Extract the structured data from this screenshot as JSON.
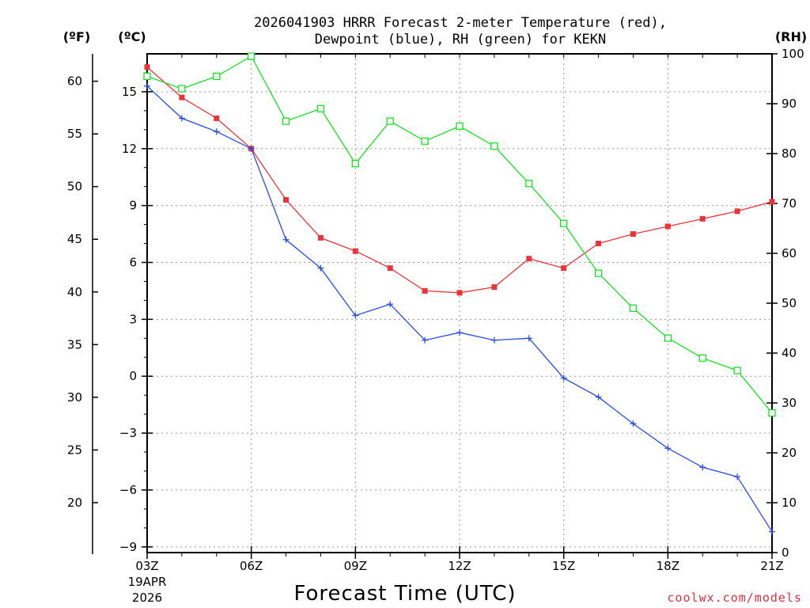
{
  "chart_data": {
    "type": "line",
    "title_line1": "2026041903 HRRR Forecast 2-meter Temperature (red),",
    "title_line2": "Dewpoint (blue), RH (green) for KEKN",
    "xlabel": "Forecast Time (UTC)",
    "x_hours": [
      3,
      4,
      5,
      6,
      7,
      8,
      9,
      10,
      11,
      12,
      13,
      14,
      15,
      16,
      17,
      18,
      19,
      20,
      21
    ],
    "x_ticks": [
      {
        "hour": 3,
        "label": "03Z"
      },
      {
        "hour": 6,
        "label": "06Z"
      },
      {
        "hour": 9,
        "label": "09Z"
      },
      {
        "hour": 12,
        "label": "12Z"
      },
      {
        "hour": 15,
        "label": "15Z"
      },
      {
        "hour": 18,
        "label": "18Z"
      },
      {
        "hour": 21,
        "label": "21Z"
      }
    ],
    "date_label_line1": "19APR",
    "date_label_line2": "2026",
    "y_celsius": {
      "unit_label": "(ºC)",
      "range": [
        -9.3,
        17.0
      ],
      "ticks": [
        15,
        12,
        9,
        6,
        3,
        0,
        -3,
        -6,
        -9
      ],
      "tick_labels": [
        "15",
        "12",
        "9",
        "6",
        "3",
        "0",
        "−3",
        "−6",
        "−9"
      ]
    },
    "y_fahrenheit": {
      "unit_label": "(ºF)",
      "ticks": [
        60,
        55,
        50,
        45,
        40,
        35,
        30,
        25,
        20
      ],
      "tick_labels": [
        "60",
        "55",
        "50",
        "45",
        "40",
        "35",
        "30",
        "25",
        "20"
      ]
    },
    "y_rh": {
      "unit_label": "(RH)",
      "range": [
        0,
        100
      ],
      "ticks": [
        100,
        90,
        80,
        70,
        60,
        50,
        40,
        30,
        20,
        10,
        0
      ],
      "tick_labels": [
        "100",
        "90",
        "80",
        "70",
        "60",
        "50",
        "40",
        "30",
        "20",
        "10",
        "0"
      ]
    },
    "series": [
      {
        "name": "Temperature",
        "axis": "celsius",
        "color": "#e8353a",
        "marker": "filled-square",
        "values": [
          16.3,
          14.7,
          13.6,
          12.0,
          9.3,
          7.3,
          6.6,
          5.7,
          4.5,
          4.4,
          4.7,
          6.2,
          5.7,
          7.0,
          7.5,
          7.9,
          8.3,
          8.7,
          9.2
        ]
      },
      {
        "name": "Dewpoint",
        "axis": "celsius",
        "color": "#2a4be6",
        "marker": "plus",
        "values": [
          15.3,
          13.6,
          12.9,
          12.0,
          7.2,
          5.7,
          3.2,
          3.8,
          1.9,
          2.3,
          1.9,
          2.0,
          -0.1,
          -1.1,
          -2.5,
          -3.8,
          -4.8,
          -5.3,
          -8.2
        ]
      },
      {
        "name": "RH",
        "axis": "rh",
        "color": "#19e028",
        "marker": "open-square",
        "values": [
          95.5,
          93.0,
          95.5,
          99.5,
          86.5,
          89.0,
          78.0,
          86.5,
          82.5,
          85.5,
          81.5,
          74.0,
          66.0,
          56.0,
          49.0,
          43.0,
          39.0,
          36.5,
          28.0
        ]
      }
    ]
  },
  "credit": "coolwx.com/models",
  "colors": {
    "temperature": "#e8353a",
    "dewpoint": "#2a4be6",
    "rh": "#19e028",
    "credit": "#e03040",
    "grid": "#9a9a9a"
  }
}
